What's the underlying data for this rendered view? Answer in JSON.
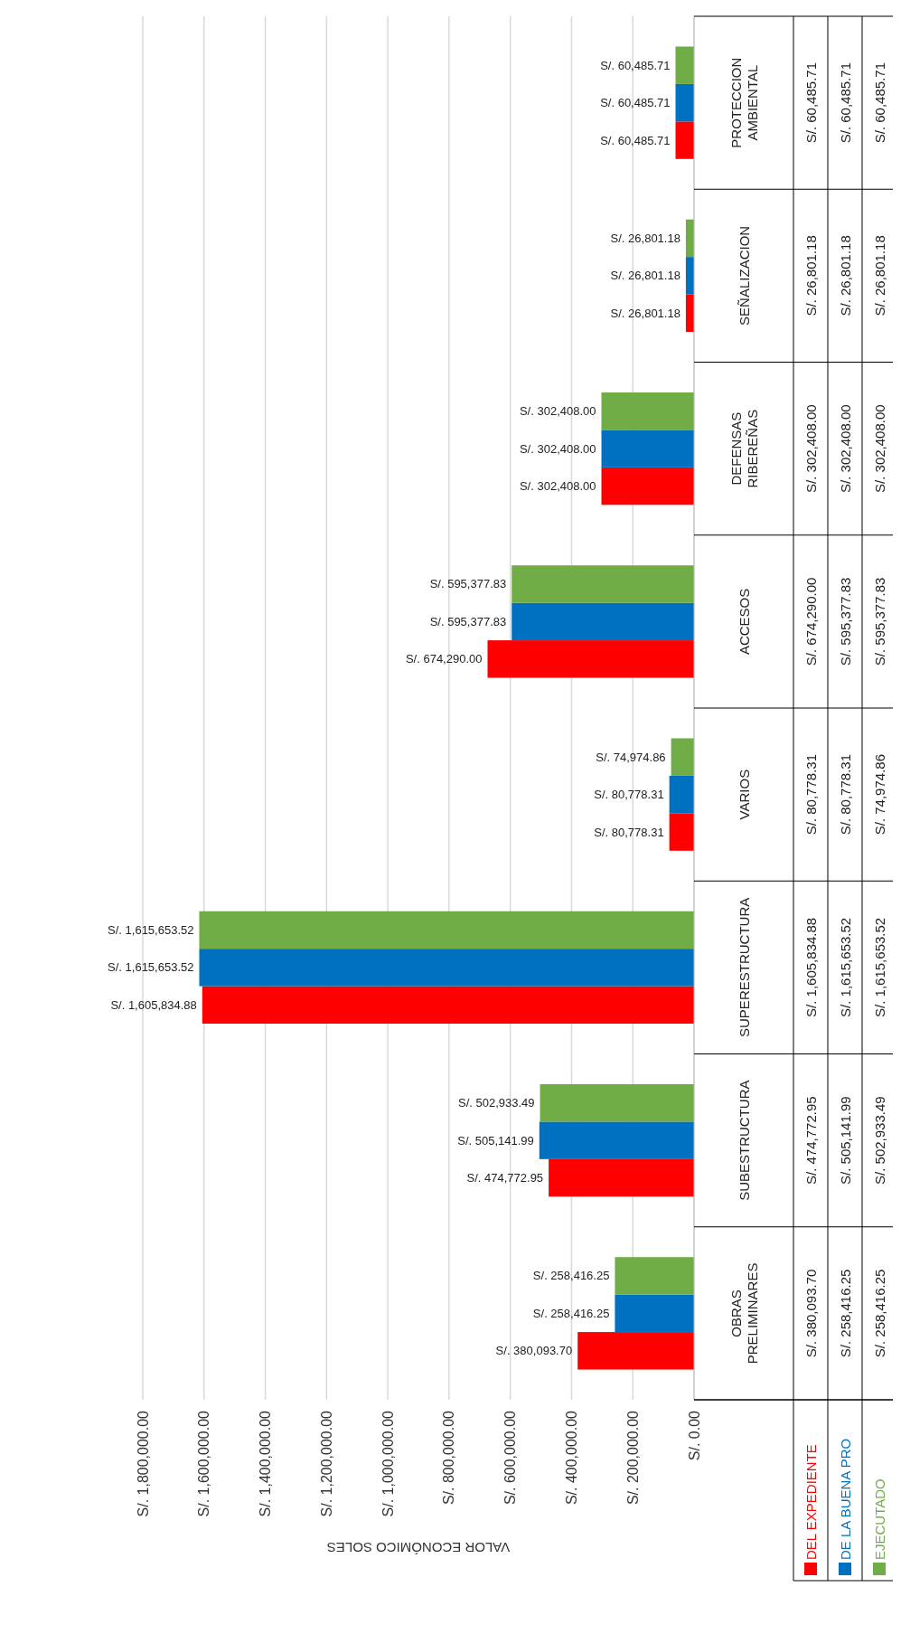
{
  "chart_data": {
    "type": "bar",
    "orientation": "horizontal",
    "xlabel": "VALOR ECONÓMICO SOLES",
    "categories": [
      "PROTECCION AMBIENTAL",
      "SEÑALIZACION",
      "DEFENSAS RIBEREÑAS",
      "ACCESOS",
      "VARIOS",
      "SUPERESTRUCTURA",
      "SUBESTRUCTURA",
      "OBRAS PRELIMINARES"
    ],
    "series": [
      {
        "name": "DEL EXPEDIENTE",
        "color": "#ff0000",
        "values": [
          60485.71,
          26801.18,
          302408.0,
          674290.0,
          80778.31,
          1605834.88,
          474772.95,
          380093.7
        ],
        "value_labels": [
          "S/. 60,485.71",
          "S/. 26,801.18",
          "S/. 302,408.00",
          "S/. 674,290.00",
          "S/. 80,778.31",
          "S/. 1,605,834.88",
          "S/. 474,772.95",
          "S/. 380,093.70"
        ]
      },
      {
        "name": "DE LA BUENA PRO",
        "color": "#0070c0",
        "values": [
          60485.71,
          26801.18,
          302408.0,
          595377.83,
          80778.31,
          1615653.52,
          505141.99,
          258416.25
        ],
        "value_labels": [
          "S/. 60,485.71",
          "S/. 26,801.18",
          "S/. 302,408.00",
          "S/. 595,377.83",
          "S/. 80,778.31",
          "S/. 1,615,653.52",
          "S/. 505,141.99",
          "S/. 258,416.25"
        ]
      },
      {
        "name": "EJECUTADO",
        "color": "#70ad47",
        "values": [
          60485.71,
          26801.18,
          302408.0,
          595377.83,
          74974.86,
          1615653.52,
          502933.49,
          258416.25
        ],
        "value_labels": [
          "S/. 60,485.71",
          "S/. 26,801.18",
          "S/. 302,408.00",
          "S/. 595,377.83",
          "S/. 74,974.86",
          "S/. 1,615,653.52",
          "S/. 502,933.49",
          "S/. 258,416.25"
        ]
      }
    ],
    "xlim": [
      1800000,
      0
    ],
    "xticks": [
      {
        "value": 1800000,
        "label": "S/. 1,800,000.00"
      },
      {
        "value": 1600000,
        "label": "S/. 1,600,000.00"
      },
      {
        "value": 1400000,
        "label": "S/. 1,400,000.00"
      },
      {
        "value": 1200000,
        "label": "S/. 1,200,000.00"
      },
      {
        "value": 1000000,
        "label": "S/. 1,000,000.00"
      },
      {
        "value": 800000,
        "label": "S/. 800,000.00"
      },
      {
        "value": 600000,
        "label": "S/. 600,000.00"
      },
      {
        "value": 400000,
        "label": "S/. 400,000.00"
      },
      {
        "value": 200000,
        "label": "S/. 200,000.00"
      },
      {
        "value": 0,
        "label": "S/. 0.00"
      }
    ],
    "grid": "x",
    "legend": "bottom"
  }
}
